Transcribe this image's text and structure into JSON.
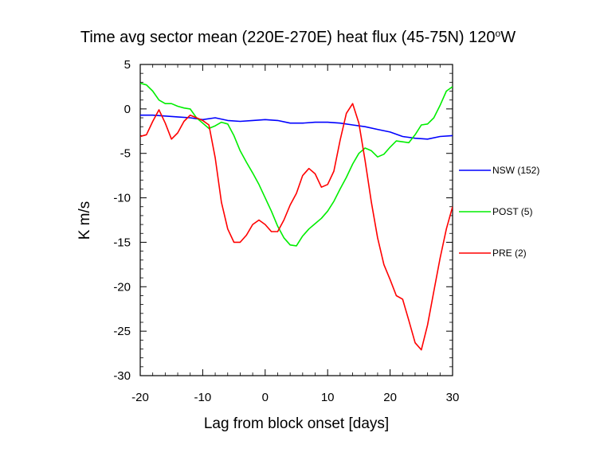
{
  "chart_data": {
    "type": "line",
    "title": "Time avg sector mean (220E-270E) heat flux (45-75N) 120",
    "title_sup": "o",
    "title_suffix": "W",
    "xlabel": "Lag from block onset [days]",
    "ylabel": "K m/s",
    "xlim": [
      -20,
      30
    ],
    "ylim": [
      -30,
      5
    ],
    "xticks": [
      -20,
      -10,
      0,
      10,
      20,
      30
    ],
    "yticks": [
      5,
      0,
      -5,
      -10,
      -15,
      -20,
      -25,
      -30
    ],
    "grid": false,
    "legend_position": "right",
    "series": [
      {
        "name": "NSW (152)",
        "color": "#0000ff",
        "x": [
          -20,
          -18,
          -16,
          -14,
          -12,
          -10,
          -8,
          -6,
          -4,
          -2,
          0,
          2,
          4,
          6,
          8,
          10,
          12,
          14,
          16,
          18,
          20,
          22,
          24,
          26,
          28,
          30
        ],
        "y": [
          -0.7,
          -0.7,
          -0.8,
          -0.9,
          -1.0,
          -1.2,
          -1.0,
          -1.3,
          -1.4,
          -1.3,
          -1.2,
          -1.3,
          -1.6,
          -1.6,
          -1.5,
          -1.5,
          -1.6,
          -1.8,
          -2.0,
          -2.3,
          -2.6,
          -3.1,
          -3.3,
          -3.4,
          -3.1,
          -3.0
        ]
      },
      {
        "name": "POST (5)",
        "color": "#00ee00",
        "x": [
          -20,
          -19,
          -18,
          -17,
          -16,
          -15,
          -14,
          -13,
          -12,
          -11,
          -10,
          -9,
          -8,
          -7,
          -6,
          -5,
          -4,
          -3,
          -2,
          -1,
          0,
          1,
          2,
          3,
          4,
          5,
          6,
          7,
          8,
          9,
          10,
          11,
          12,
          13,
          14,
          15,
          16,
          17,
          18,
          19,
          20,
          21,
          22,
          23,
          24,
          25,
          26,
          27,
          28,
          29,
          30
        ],
        "y": [
          2.9,
          2.7,
          2.0,
          1.0,
          0.6,
          0.6,
          0.3,
          0.1,
          0.0,
          -1.0,
          -1.6,
          -2.2,
          -1.9,
          -1.5,
          -1.7,
          -3.0,
          -4.7,
          -6.0,
          -7.2,
          -8.5,
          -10.0,
          -11.5,
          -13.2,
          -14.5,
          -15.3,
          -15.4,
          -14.3,
          -13.5,
          -12.9,
          -12.3,
          -11.5,
          -10.4,
          -9.0,
          -7.7,
          -6.2,
          -5.0,
          -4.4,
          -4.7,
          -5.4,
          -5.1,
          -4.3,
          -3.6,
          -3.7,
          -3.8,
          -2.9,
          -1.8,
          -1.7,
          -1.0,
          0.4,
          2.0,
          2.5
        ]
      },
      {
        "name": "PRE (2)",
        "color": "#ff0000",
        "x": [
          -20,
          -19,
          -18,
          -17,
          -16,
          -15,
          -14,
          -13,
          -12,
          -11,
          -10,
          -9,
          -8,
          -7,
          -6,
          -5,
          -4,
          -3,
          -2,
          -1,
          0,
          1,
          2,
          3,
          4,
          5,
          6,
          7,
          8,
          9,
          10,
          11,
          12,
          13,
          14,
          15,
          16,
          17,
          18,
          19,
          20,
          21,
          22,
          23,
          24,
          25,
          26,
          27,
          28,
          29,
          30
        ],
        "y": [
          -3.1,
          -2.9,
          -1.4,
          -0.1,
          -1.6,
          -3.4,
          -2.7,
          -1.4,
          -0.7,
          -1.0,
          -1.3,
          -1.8,
          -5.5,
          -10.5,
          -13.5,
          -15.0,
          -15.0,
          -14.2,
          -13.0,
          -12.5,
          -13.0,
          -13.8,
          -13.8,
          -12.5,
          -10.8,
          -9.5,
          -7.5,
          -6.7,
          -7.3,
          -8.8,
          -8.5,
          -7.0,
          -3.5,
          -0.5,
          0.6,
          -1.6,
          -5.8,
          -10.5,
          -14.5,
          -17.5,
          -19.2,
          -21.0,
          -21.4,
          -23.8,
          -26.3,
          -27.1,
          -24.3,
          -20.5,
          -16.8,
          -13.5,
          -11.0
        ]
      }
    ]
  }
}
